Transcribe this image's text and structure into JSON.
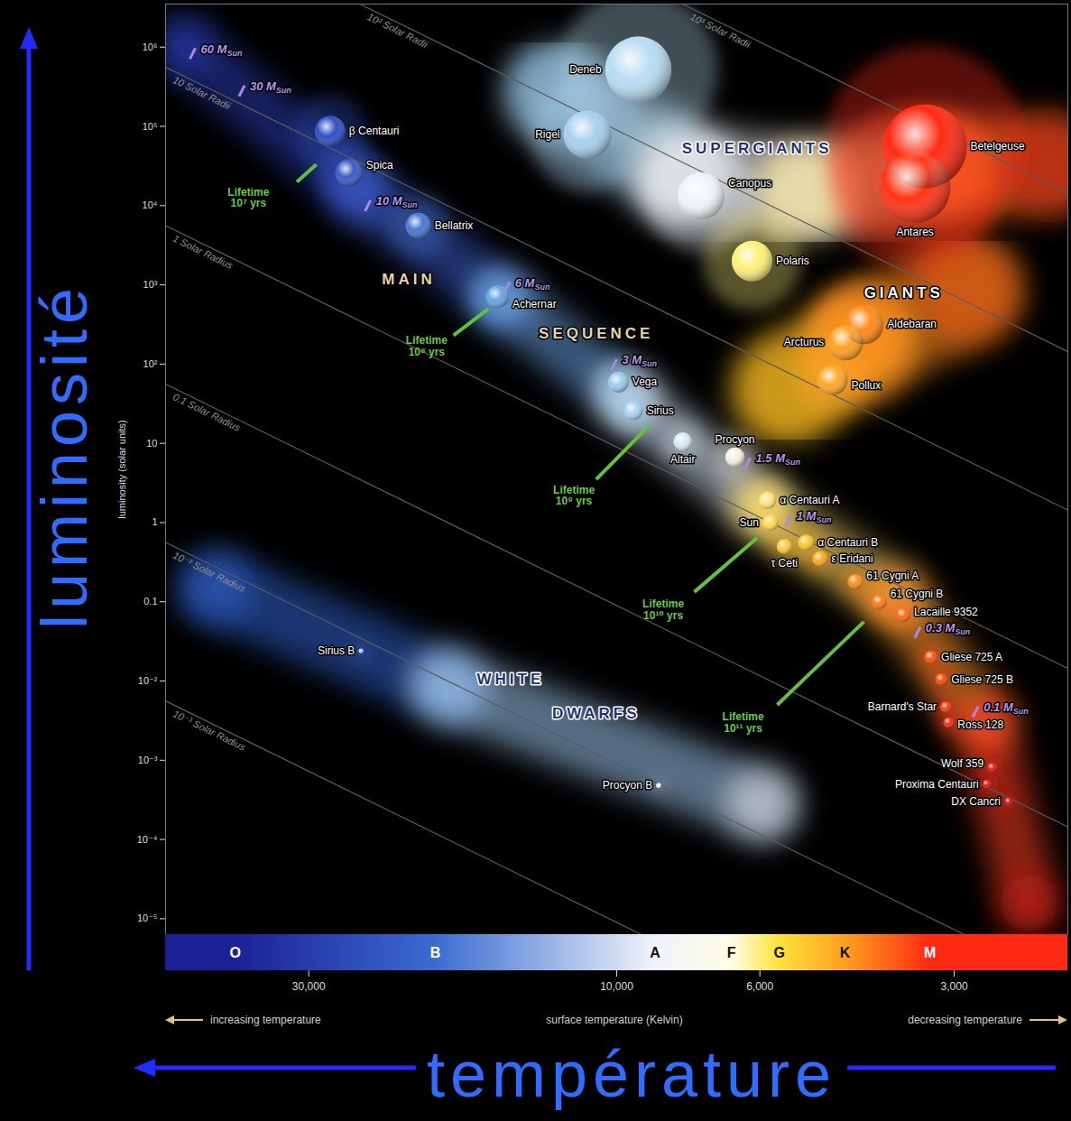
{
  "chart_data": {
    "type": "scatter",
    "log": true,
    "outer_labels": {
      "y": "luminosité",
      "x": "température"
    },
    "y_label": "luminosity (solar units)",
    "x_label": "surface temperature (Kelvin)",
    "x_notes": {
      "left": "increasing temperature",
      "right": "decreasing temperature"
    },
    "xlim": [
      50000,
      2000
    ],
    "ylim": [
      6.3e-06,
      3500000.0
    ],
    "xticks": [
      {
        "value": 30000,
        "label": "30,000"
      },
      {
        "value": 10000,
        "label": "10,000"
      },
      {
        "value": 6000,
        "label": "6,000"
      },
      {
        "value": 3000,
        "label": "3,000"
      }
    ],
    "yticks": [
      {
        "value": 1000000.0,
        "label": "10⁶"
      },
      {
        "value": 100000.0,
        "label": "10⁵"
      },
      {
        "value": 10000.0,
        "label": "10⁴"
      },
      {
        "value": 1000,
        "label": "10³"
      },
      {
        "value": 100,
        "label": "10²"
      },
      10,
      1,
      0.1,
      {
        "value": 0.01,
        "label": "10⁻²"
      },
      {
        "value": 0.001,
        "label": "10⁻³"
      },
      {
        "value": 0.0001,
        "label": "10⁻⁴"
      },
      {
        "value": 1e-05,
        "label": "10⁻⁵"
      }
    ],
    "spectral_classes": {
      "labels": [
        "O",
        "B",
        "A",
        "F",
        "G",
        "K",
        "M"
      ],
      "x": [
        39000,
        19100,
        8720,
        6640,
        5600,
        4430,
        3270
      ],
      "colors": [
        "#1c2096",
        "#3a6cd0",
        "#f0f4fa",
        "#fffde6",
        "#ffe23a",
        "#ffa020",
        "#ff2a14"
      ]
    },
    "radius_lines": [
      {
        "label": "10³ Solar Radii",
        "x": [
          50000,
          2000
        ],
        "y": [
          5600000000.0,
          14400
        ]
      },
      {
        "label": "10² Solar Radii",
        "x": [
          50000,
          2000
        ],
        "y": [
          56000000.0,
          144
        ]
      },
      {
        "label": "10 Solar Radii",
        "x": [
          50000,
          2000
        ],
        "y": [
          560000,
          1.44
        ]
      },
      {
        "label": "1 Solar Radius",
        "x": [
          50000,
          2000
        ],
        "y": [
          5600,
          0.0144
        ]
      },
      {
        "label": "0.1 Solar Radius",
        "x": [
          50000,
          2000
        ],
        "y": [
          56,
          0.000144
        ]
      },
      {
        "label": "10⁻² Solar Radius",
        "x": [
          50000,
          2000
        ],
        "y": [
          0.56,
          1.44e-06
        ]
      },
      {
        "label": "10⁻³ Solar Radius",
        "x": [
          50000,
          2000
        ],
        "y": [
          0.0056,
          1.44e-08
        ]
      }
    ],
    "regions": [
      {
        "labels": [
          "MAIN",
          "SEQUENCE"
        ],
        "label_x": [
          21000,
          10760
        ],
        "label_y": [
          1170,
          245
        ],
        "x": [
          46600,
          25000,
          15000,
          9620,
          5970,
          3700,
          2690,
          2300
        ],
        "y": [
          1000000,
          15000,
          660,
          37,
          1.6,
          0.117,
          0.003,
          1.6e-05
        ],
        "colors": [
          "#2a3cb0",
          "#3a5ac8",
          "#6aa0e0",
          "#d8e8f8",
          "#ffe070",
          "#ff9a30",
          "#ff4020",
          "#d01010"
        ]
      },
      {
        "labels": [
          "SUPERGIANTS"
        ],
        "label_x": [
          6060
        ],
        "label_y": [
          53000
        ],
        "x": [
          12400,
          7950,
          5090,
          3160,
          2150
        ],
        "y": [
          270000,
          26000,
          15000,
          29000,
          33000
        ],
        "colors": [
          "#a0d0f0",
          "#f0f0f0",
          "#fff0b0",
          "#ff8020",
          "#e02010"
        ]
      },
      {
        "labels": [
          "GIANTS"
        ],
        "label_x": [
          3590
        ],
        "label_y": [
          790
        ],
        "x": [
          5420,
          4210,
          2870
        ],
        "y": [
          48,
          178,
          850
        ],
        "colors": [
          "#ffc020",
          "#ff9020",
          "#ff6010"
        ]
      },
      {
        "labels": [
          "WHITE",
          "DWARFS"
        ],
        "label_x": [
          14600,
          10760
        ],
        "label_y": [
          0.0105,
          0.0039
        ],
        "x": [
          41700,
          18200,
          5970
        ],
        "y": [
          0.15,
          0.0085,
          0.00028
        ],
        "colors": [
          "#3060d0",
          "#a0c8f0",
          "#f0f0f0"
        ]
      }
    ],
    "masses": [
      {
        "label": "60 MSun",
        "x": 45400,
        "y": 830000
      },
      {
        "label": "30 MSun",
        "x": 38100,
        "y": 280000
      },
      {
        "label": "10 MSun",
        "x": 24300,
        "y": 10000
      },
      {
        "label": "6 MSun",
        "x": 14800,
        "y": 930
      },
      {
        "label": "3 MSun",
        "x": 10100,
        "y": 98
      },
      {
        "label": "1.5 MSun",
        "x": 6270,
        "y": 5.6
      },
      {
        "label": "1 MSun",
        "x": 5420,
        "y": 1.07
      },
      {
        "label": "0.3 MSun",
        "x": 3420,
        "y": 0.041
      },
      {
        "label": "0.1 MSun",
        "x": 2780,
        "y": 0.0041
      }
    ],
    "lifetimes": [
      {
        "text": [
          "Lifetime",
          "10⁷ yrs"
        ],
        "x": 37200,
        "y": 12600,
        "line_x": [
          31300,
          29200
        ],
        "line_y": [
          20000,
          33000
        ]
      },
      {
        "text": [
          "Lifetime",
          "10⁸ yrs"
        ],
        "x": 19700,
        "y": 170,
        "line_x": [
          17900,
          15800
        ],
        "line_y": [
          230,
          500
        ]
      },
      {
        "text": [
          "Lifetime",
          "10⁹ yrs"
        ],
        "x": 11650,
        "y": 2.2,
        "line_x": [
          10760,
          8890
        ],
        "line_y": [
          3.5,
          17
        ]
      },
      {
        "text": [
          "Lifetime",
          "10¹⁰ yrs"
        ],
        "x": 8470,
        "y": 0.079,
        "line_x": [
          7580,
          6060
        ],
        "line_y": [
          0.133,
          0.64
        ]
      },
      {
        "text": [
          "Lifetime",
          "10¹¹ yrs"
        ],
        "x": 6370,
        "y": 0.003,
        "line_x": [
          5640,
          4140
        ],
        "line_y": [
          0.005,
          0.056
        ]
      }
    ],
    "stars": [
      {
        "name": "β Centauri",
        "x": 27800,
        "y": 87000,
        "color": "#3050c0"
      },
      {
        "name": "Spica",
        "x": 26000,
        "y": 26000,
        "color": "#3a5cc8"
      },
      {
        "name": "Bellatrix",
        "x": 20300,
        "y": 5600,
        "color": "#4a78d0"
      },
      {
        "name": "Achernar",
        "x": 15300,
        "y": 710,
        "color": "#6aa6e0"
      },
      {
        "name": "Vega",
        "x": 9940,
        "y": 59,
        "color": "#9ccbec"
      },
      {
        "name": "Sirius",
        "x": 9420,
        "y": 26,
        "color": "#a8d4f0"
      },
      {
        "name": "Altair",
        "x": 7900,
        "y": 10.5,
        "color": "#d8eaf6"
      },
      {
        "name": "Procyon",
        "x": 6560,
        "y": 6.7,
        "color": "#f4f0e0"
      },
      {
        "name": "α Centauri A",
        "x": 5840,
        "y": 1.9,
        "color": "#ffe27a"
      },
      {
        "name": "Sun",
        "x": 5780,
        "y": 1,
        "color": "#ffd84a"
      },
      {
        "name": "α Centauri B",
        "x": 5090,
        "y": 0.56,
        "color": "#ffc530"
      },
      {
        "name": "τ Ceti",
        "x": 5500,
        "y": 0.5,
        "color": "#ffc640"
      },
      {
        "name": "ε Eridani",
        "x": 4840,
        "y": 0.35,
        "color": "#ffa820"
      },
      {
        "name": "61 Cygni A",
        "x": 4270,
        "y": 0.18,
        "color": "#ff8c1a"
      },
      {
        "name": "61 Cygni B",
        "x": 3920,
        "y": 0.1,
        "color": "#ff7a18"
      },
      {
        "name": "Lacaille 9352",
        "x": 3600,
        "y": 0.069,
        "color": "#ff6a15"
      },
      {
        "name": "Gliese 725 A",
        "x": 3260,
        "y": 0.02,
        "color": "#ff5512"
      },
      {
        "name": "Gliese 725 B",
        "x": 3140,
        "y": 0.0105,
        "color": "#ff4a10"
      },
      {
        "name": "Barnard's Star",
        "x": 3090,
        "y": 0.0047,
        "color": "#ff3a10"
      },
      {
        "name": "Ross 128",
        "x": 3060,
        "y": 0.003,
        "color": "#f03010"
      },
      {
        "name": "Wolf 359",
        "x": 2620,
        "y": 0.00081,
        "color": "#e02010"
      },
      {
        "name": "Proxima Centauri",
        "x": 2670,
        "y": 0.0005,
        "color": "#e01a10"
      },
      {
        "name": "DX Cancri",
        "x": 2470,
        "y": 0.0003,
        "color": "#d01010"
      },
      {
        "name": "Sirius B",
        "x": 24900,
        "y": 0.024,
        "color": "#9cc4ff"
      },
      {
        "name": "Procyon B",
        "x": 8610,
        "y": 0.00048,
        "color": "#f0f4ff"
      },
      {
        "name": "Deneb",
        "x": 9260,
        "y": 520000,
        "color": "#b8dcf2"
      },
      {
        "name": "Rigel",
        "x": 11100,
        "y": 79000,
        "color": "#a8d0ee"
      },
      {
        "name": "Canopus",
        "x": 7400,
        "y": 13300,
        "color": "#eef4f8"
      },
      {
        "name": "Polaris",
        "x": 6170,
        "y": 2000,
        "color": "#fff07a"
      },
      {
        "name": "Betelgeuse",
        "x": 3330,
        "y": 56000,
        "color": "#ff2a12"
      },
      {
        "name": "Antares",
        "x": 3450,
        "y": 17000,
        "color": "#ff3414"
      },
      {
        "name": "Aldebaran",
        "x": 4140,
        "y": 316,
        "color": "#ff8a18"
      },
      {
        "name": "Arcturus",
        "x": 4420,
        "y": 187,
        "color": "#ffa020"
      },
      {
        "name": "Pollux",
        "x": 4630,
        "y": 63,
        "color": "#ffa828"
      }
    ]
  }
}
